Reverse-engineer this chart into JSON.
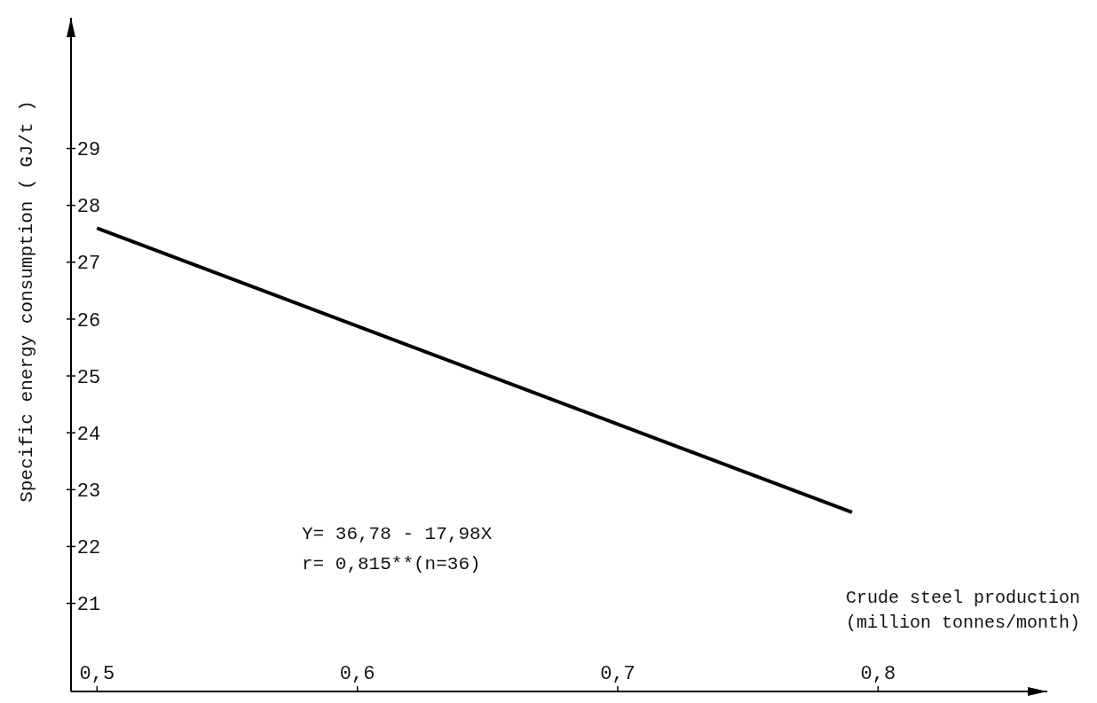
{
  "chart_data": {
    "type": "line",
    "xlabel": "Crude steel production\n(million tonnes/month)",
    "ylabel": "Specific energy consumption ( GJ/t )",
    "x": [
      0.5,
      0.79
    ],
    "series": [
      {
        "color": "#000000",
        "values": [
          27.6,
          22.6
        ]
      }
    ],
    "xlim": [
      0.49,
      0.865
    ],
    "xticks": [
      {
        "value": 0.5,
        "label": "0,5"
      },
      {
        "value": 0.6,
        "label": "0,6"
      },
      {
        "value": 0.7,
        "label": "0,7"
      },
      {
        "value": 0.8,
        "label": "0,8"
      }
    ],
    "ylim": [
      19.45,
      31.3
    ],
    "yticks": [
      21,
      22,
      23,
      24,
      25,
      26,
      27,
      28,
      29
    ],
    "annotations": [
      "Y= 36,78 - 17,98X",
      "r= 0,815**(n=36)"
    ],
    "grid": false,
    "marker": "none",
    "line_style": "solid"
  }
}
